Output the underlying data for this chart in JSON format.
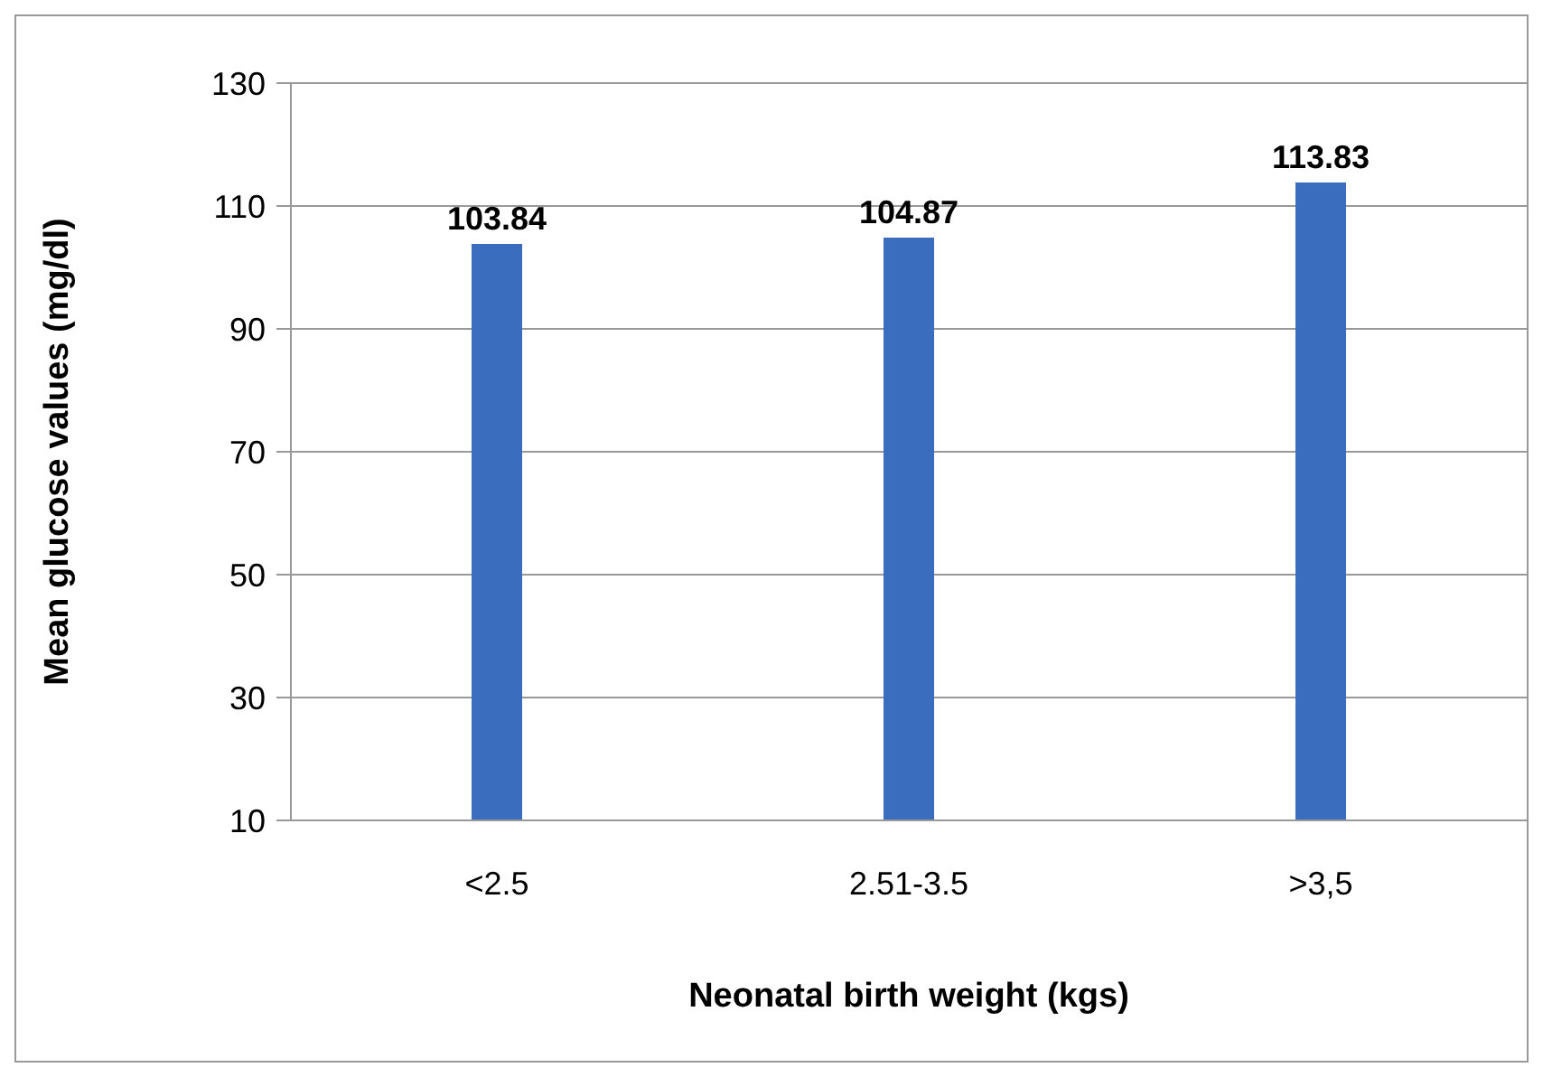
{
  "chart_data": {
    "type": "bar",
    "xlabel": "Neonatal birth weight (kgs)",
    "ylabel": "Mean glucose values (mg/dl)",
    "categories": [
      "<2.5",
      "2.51-3.5",
      ">3,5"
    ],
    "values": [
      103.84,
      104.87,
      113.83
    ],
    "color": "#3b6dbf",
    "ylim": [
      10,
      130
    ],
    "yticks": [
      10,
      30,
      50,
      70,
      90,
      110,
      130
    ],
    "grid": "y",
    "data_labels": true,
    "legend": false
  }
}
